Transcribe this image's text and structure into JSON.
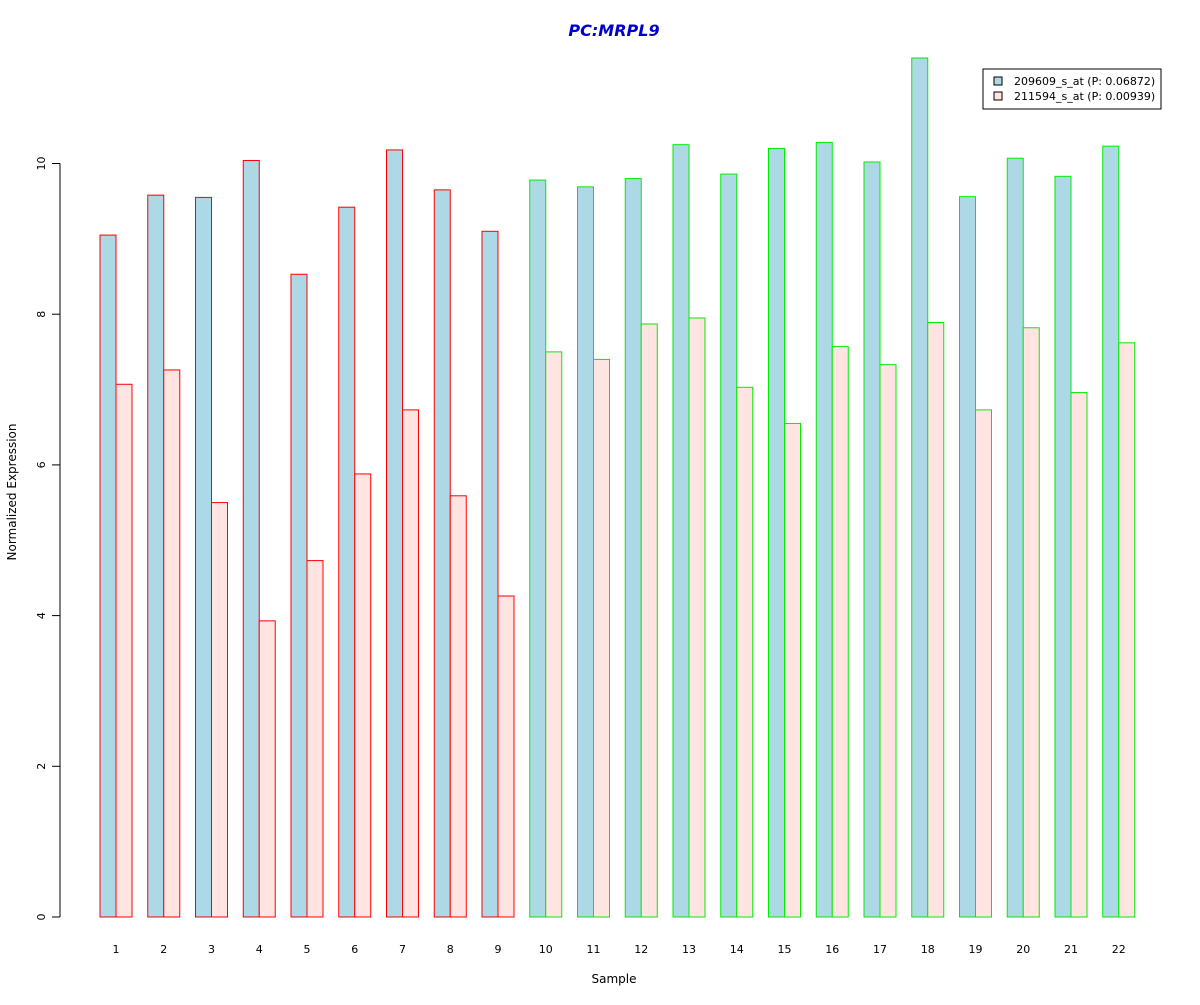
{
  "chart_data": {
    "type": "bar",
    "title": "PC:MRPL9",
    "xlabel": "Sample",
    "ylabel": "Normalized Expression",
    "categories": [
      "1",
      "2",
      "3",
      "4",
      "5",
      "6",
      "7",
      "8",
      "9",
      "10",
      "11",
      "12",
      "13",
      "14",
      "15",
      "16",
      "17",
      "18",
      "19",
      "20",
      "21",
      "22"
    ],
    "y_ticks": [
      0,
      2,
      4,
      6,
      8,
      10
    ],
    "ylim": [
      0,
      11.4
    ],
    "grid": false,
    "legend_position": "top-right",
    "series": [
      {
        "name": "209609_s_at (P: 0.06872)",
        "fill": "#add8e6",
        "values": [
          9.05,
          9.58,
          9.55,
          10.04,
          8.53,
          9.42,
          10.18,
          9.65,
          9.1,
          9.78,
          9.69,
          9.8,
          10.25,
          9.86,
          10.2,
          10.28,
          10.02,
          11.4,
          9.56,
          10.07,
          9.83,
          10.23
        ]
      },
      {
        "name": "211594_s_at (P: 0.00939)",
        "fill": "#ffe4e1",
        "values": [
          7.07,
          7.26,
          5.5,
          3.93,
          4.73,
          5.88,
          6.73,
          5.59,
          4.26,
          7.5,
          7.4,
          7.87,
          7.95,
          7.03,
          6.55,
          7.57,
          7.33,
          7.89,
          6.73,
          7.82,
          6.96,
          7.62
        ]
      }
    ],
    "sample_group_colors": [
      "#ff0000",
      "#ff0000",
      "#ff0000",
      "#ff0000",
      "#ff0000",
      "#ff0000",
      "#ff0000",
      "#ff0000",
      "#ff0000",
      "#00ee00",
      "#00ee00",
      "#00ee00",
      "#00ee00",
      "#00ee00",
      "#00ee00",
      "#00ee00",
      "#00ee00",
      "#00ee00",
      "#00ee00",
      "#00ee00",
      "#00ee00",
      "#00ee00"
    ],
    "title_color": "#0000cd"
  }
}
